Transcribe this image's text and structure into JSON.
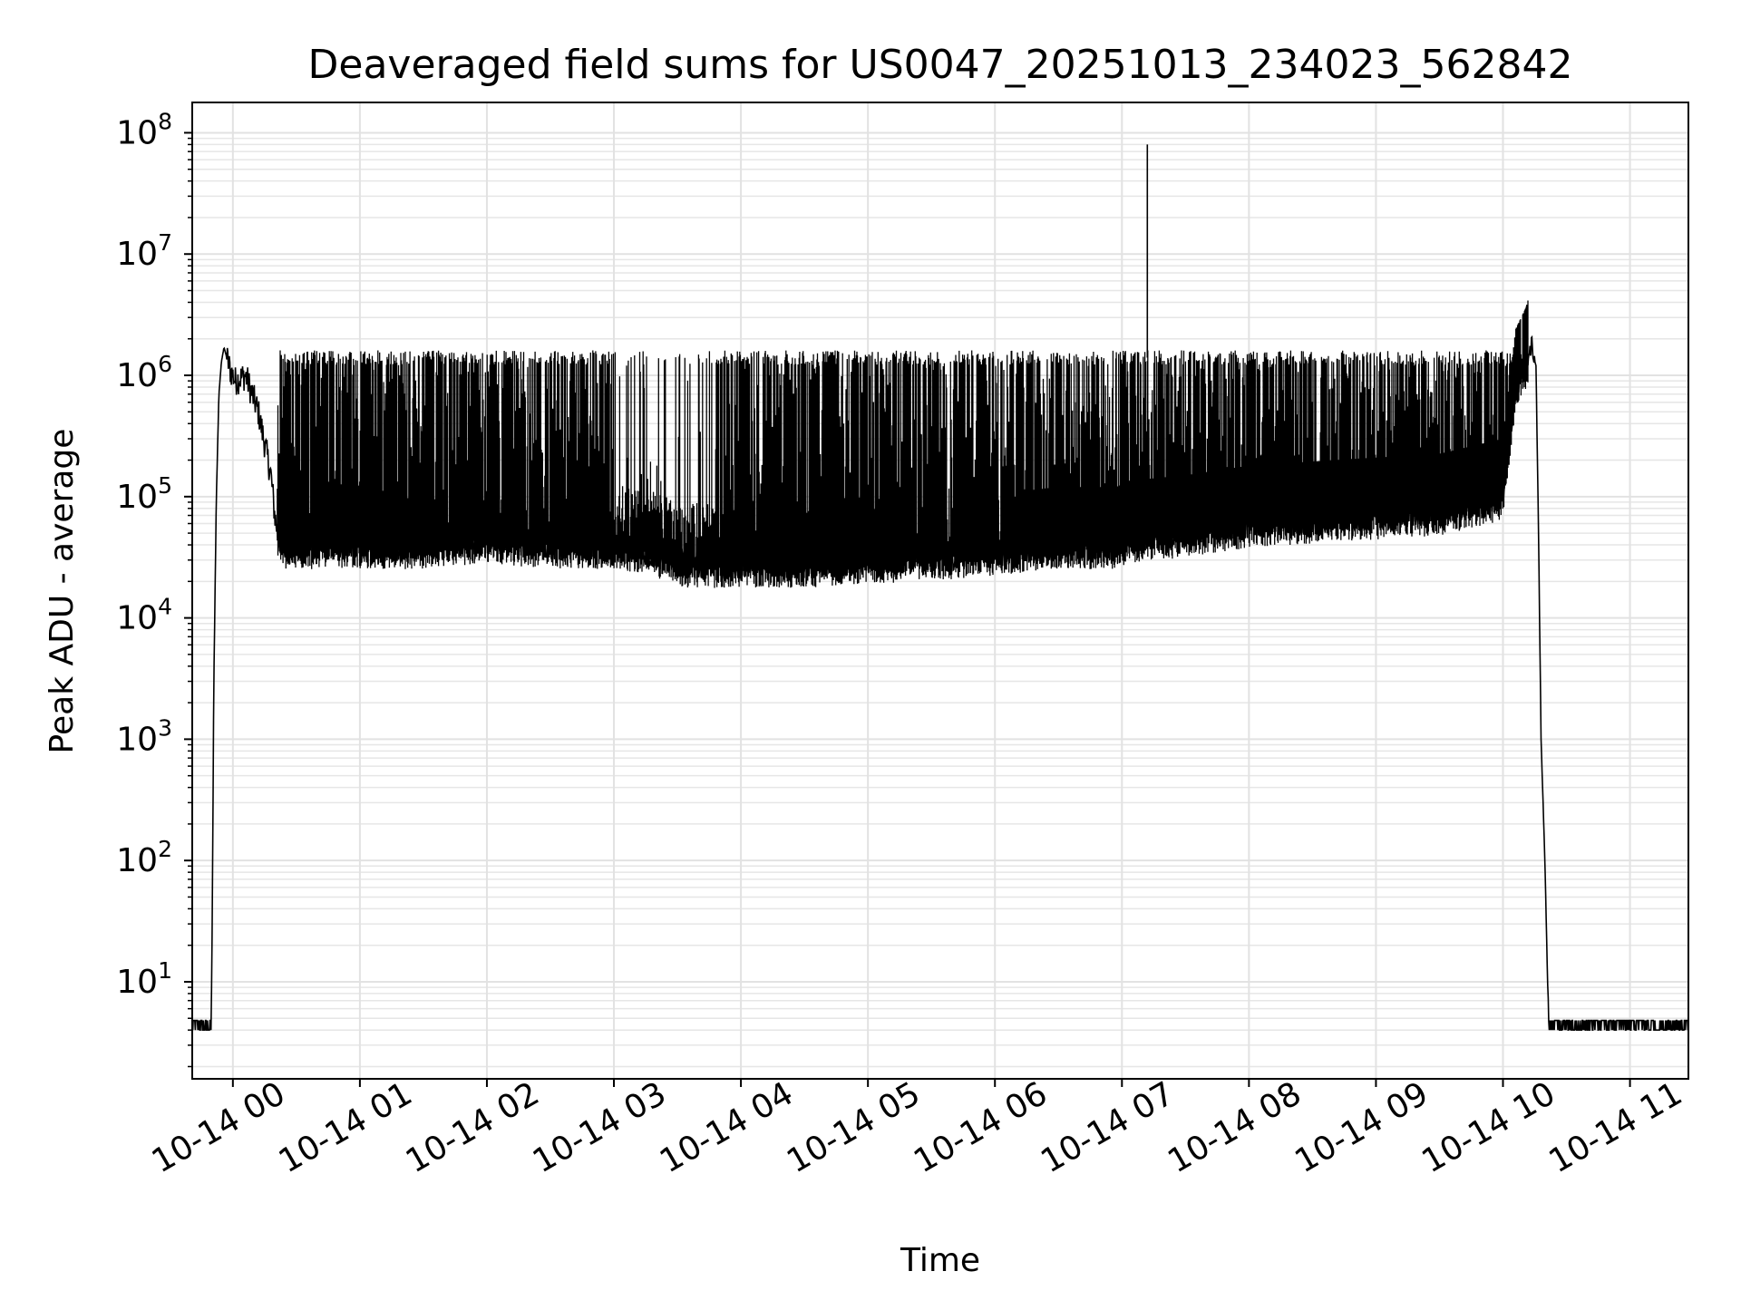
{
  "chart_data": {
    "type": "line",
    "title": "Deaveraged field sums for US0047_20251013_234023_562842",
    "xlabel": "Time",
    "ylabel": "Peak ADU - average",
    "yscale": "log",
    "grid": true,
    "x_unit": "hours since 10-14 00:00",
    "xlim": [
      -0.32,
      11.46
    ],
    "ylim_log10": [
      0.2,
      8.25
    ],
    "x_ticks": [
      0,
      1,
      2,
      3,
      4,
      5,
      6,
      7,
      8,
      9,
      10,
      11
    ],
    "x_tick_labels": [
      "10-14 00",
      "10-14 01",
      "10-14 02",
      "10-14 03",
      "10-14 04",
      "10-14 05",
      "10-14 06",
      "10-14 07",
      "10-14 08",
      "10-14 09",
      "10-14 10",
      "10-14 11"
    ],
    "y_ticks": [
      {
        "base": "10",
        "exp": "1",
        "value": 10
      },
      {
        "base": "10",
        "exp": "2",
        "value": 100
      },
      {
        "base": "10",
        "exp": "3",
        "value": 1000
      },
      {
        "base": "10",
        "exp": "4",
        "value": 10000
      },
      {
        "base": "10",
        "exp": "5",
        "value": 100000
      },
      {
        "base": "10",
        "exp": "6",
        "value": 1000000
      },
      {
        "base": "10",
        "exp": "7",
        "value": 10000000
      },
      {
        "base": "10",
        "exp": "8",
        "value": 100000000
      }
    ],
    "series": [
      {
        "name": "Peak ADU - average",
        "color": "#000000",
        "x": [
          -0.32,
          -0.17,
          -0.16,
          -0.15,
          -0.13,
          -0.11,
          -0.09,
          -0.07,
          -0.02,
          0.02,
          0.1,
          0.2,
          0.3,
          0.33,
          0.36,
          0.4,
          0.5,
          0.75,
          1.0,
          1.5,
          2.0,
          2.5,
          3.0,
          3.3,
          3.55,
          4.0,
          4.5,
          5.0,
          5.5,
          6.0,
          6.5,
          6.96,
          7.05,
          7.5,
          8.0,
          8.5,
          9.0,
          9.5,
          10.0,
          10.1,
          10.18,
          10.22,
          10.26,
          10.28,
          10.3,
          10.33,
          10.36,
          11.46
        ],
        "y": [
          4,
          4,
          80,
          3000,
          100000,
          700000,
          1300000,
          1700000,
          1100000,
          900000,
          1000000,
          500000,
          150000,
          70000,
          45000,
          40000,
          40000,
          40000,
          40000,
          40000,
          45000,
          40000,
          40000,
          35000,
          28000,
          28000,
          28000,
          30000,
          32000,
          35000,
          40000,
          40000,
          45000,
          50000,
          60000,
          65000,
          70000,
          75000,
          100000,
          800000,
          1200000,
          1700000,
          1200000,
          50000,
          1000,
          100,
          4,
          4
        ],
        "band_top": 1400000,
        "spike_x": 7.2,
        "spike_y": 80000000
      }
    ]
  }
}
